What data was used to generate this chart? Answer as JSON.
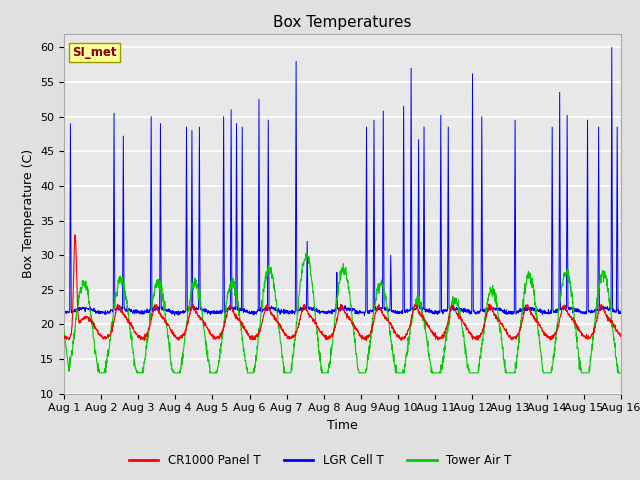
{
  "title": "Box Temperatures",
  "xlabel": "Time",
  "ylabel": "Box Temperature (C)",
  "ylim": [
    10,
    62
  ],
  "yticks": [
    10,
    15,
    20,
    25,
    30,
    35,
    40,
    45,
    50,
    55,
    60
  ],
  "xlim_days": 15,
  "xtick_labels": [
    "Aug 1",
    "Aug 2",
    "Aug 3",
    "Aug 4",
    "Aug 5",
    "Aug 6",
    "Aug 7",
    "Aug 8",
    "Aug 9",
    "Aug 10",
    "Aug 11",
    "Aug 12",
    "Aug 13",
    "Aug 14",
    "Aug 15",
    "Aug 16"
  ],
  "bg_color": "#e8e8e8",
  "fig_color": "#e0e0e0",
  "grid_color": "#ffffff",
  "watermark_text": "SI_met",
  "watermark_bg": "#ffff99",
  "watermark_fg": "#880000",
  "line_colors": {
    "cr1000": "#ff0000",
    "lgr": "#0000ff",
    "tower": "#00cc00"
  },
  "legend_labels": [
    "CR1000 Panel T",
    "LGR Cell T",
    "Tower Air T"
  ]
}
